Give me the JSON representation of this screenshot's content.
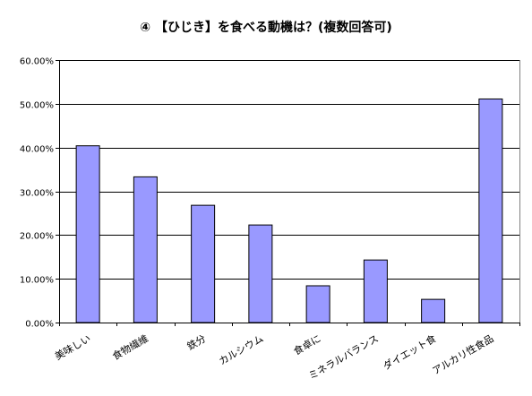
{
  "chart_data": {
    "type": "bar",
    "title": "④ 【ひじき】を食べる動機は？(複数回答可)",
    "xlabel": "",
    "ylabel": "",
    "categories": [
      "美味しい",
      "食物繊維",
      "鉄分",
      "カルシウム",
      "食卓に",
      "ミネラルバランス",
      "ダイエット食",
      "アルカリ性食品"
    ],
    "values": [
      40.4,
      33.3,
      26.8,
      22.3,
      8.4,
      14.3,
      5.3,
      51.1
    ],
    "ylim": [
      0,
      60
    ],
    "yticks": [
      "0.00%",
      "10.00%",
      "20.00%",
      "30.00%",
      "40.00%",
      "50.00%",
      "60.00%"
    ],
    "grid": true,
    "legend": "none",
    "colors": {
      "bar_fill": "#9999ff",
      "bar_stroke": "#000000",
      "plot_background": "#ffffff",
      "gridline": "#000000"
    }
  }
}
